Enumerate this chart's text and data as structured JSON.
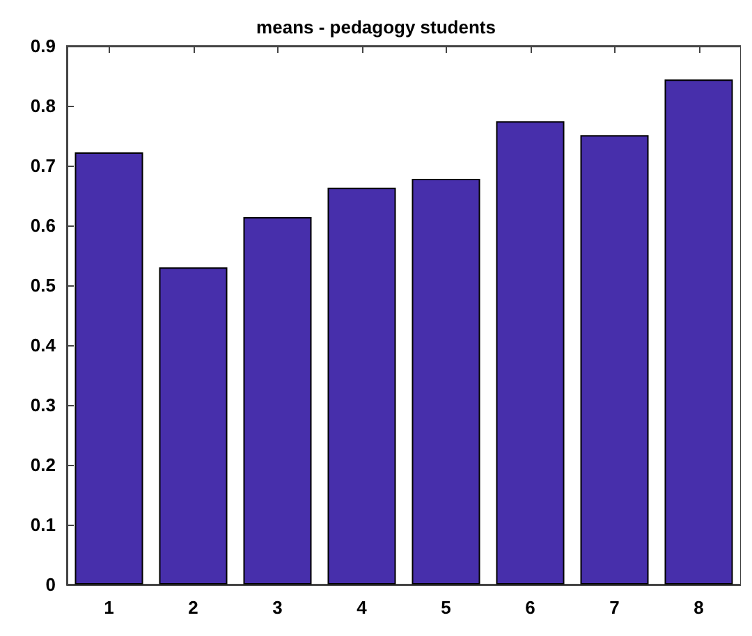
{
  "chart_data": {
    "type": "bar",
    "title": "means - pedagogy students",
    "categories": [
      "1",
      "2",
      "3",
      "4",
      "5",
      "6",
      "7",
      "8"
    ],
    "values": [
      0.722,
      0.53,
      0.614,
      0.663,
      0.678,
      0.774,
      0.751,
      0.844
    ],
    "color": "#472fab",
    "ylim": [
      0,
      0.9
    ],
    "yticks": [
      0,
      0.1,
      0.2,
      0.3,
      0.4,
      0.5,
      0.6,
      0.7,
      0.8,
      0.9
    ],
    "grid": false
  }
}
